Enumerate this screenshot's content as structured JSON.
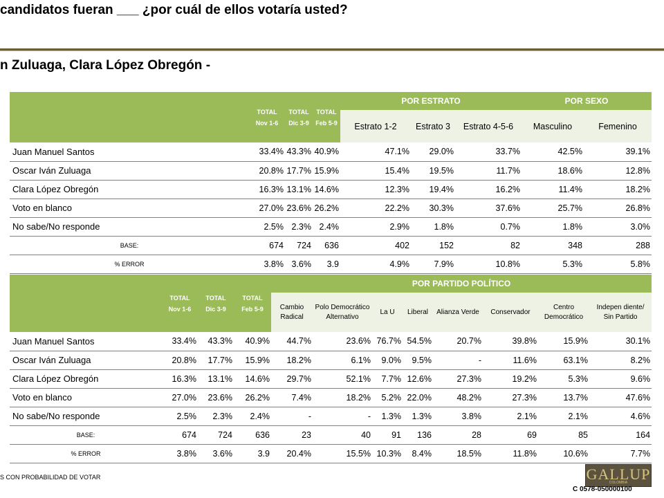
{
  "title": "candidatos fueran ___ ¿por cuál de ellos votaría usted?",
  "subtitle": "n Zuluaga, Clara López Obregón -",
  "totals_headers": [
    {
      "label": "TOTAL",
      "date": "Nov 1-6"
    },
    {
      "label": "TOTAL",
      "date": "Dic 3-9"
    },
    {
      "label": "TOTAL",
      "date": "Feb 5-9"
    }
  ],
  "table1": {
    "group_estrato": "POR ESTRATO",
    "group_sexo": "POR SEXO",
    "columns": [
      "Estrato 1-2",
      "Estrato 3",
      "Estrato 4-5-6",
      "Masculino",
      "Femenino"
    ],
    "rows": [
      {
        "name": "Juan Manuel Santos",
        "values": [
          "33.4%",
          "43.3%",
          "40.9%",
          "47.1%",
          "29.0%",
          "33.7%",
          "42.5%",
          "39.1%"
        ]
      },
      {
        "name": "Oscar Iván Zuluaga",
        "values": [
          "20.8%",
          "17.7%",
          "15.9%",
          "15.4%",
          "19.5%",
          "11.7%",
          "18.6%",
          "12.8%"
        ]
      },
      {
        "name": "Clara López Obregón",
        "values": [
          "16.3%",
          "13.1%",
          "14.6%",
          "12.3%",
          "19.4%",
          "16.2%",
          "11.4%",
          "18.2%"
        ]
      },
      {
        "name": "Voto en blanco",
        "values": [
          "27.0%",
          "23.6%",
          "26.2%",
          "22.2%",
          "30.3%",
          "37.6%",
          "25.7%",
          "26.8%"
        ]
      },
      {
        "name": "No sabe/No responde",
        "values": [
          "2.5%",
          "2.3%",
          "2.4%",
          "2.9%",
          "1.8%",
          "0.7%",
          "1.8%",
          "3.0%"
        ]
      }
    ],
    "base": {
      "label": "BASE:",
      "values": [
        "674",
        "724",
        "636",
        "402",
        "152",
        "82",
        "348",
        "288"
      ]
    },
    "error": {
      "label": "% ERROR",
      "values": [
        "3.8%",
        "3.6%",
        "3.9",
        "4.9%",
        "7.9%",
        "10.8%",
        "5.3%",
        "5.8%"
      ]
    }
  },
  "table2": {
    "group_partido": "POR PARTIDO POLÍTICO",
    "columns": [
      "Cambio Radical",
      "Polo Democrático Alternativo",
      "La U",
      "Liberal",
      "Alianza Verde",
      "Conservador",
      "Centro Democrático",
      "Indepen diente/ Sin Partido"
    ],
    "rows": [
      {
        "name": "Juan Manuel Santos",
        "values": [
          "33.4%",
          "43.3%",
          "40.9%",
          "44.7%",
          "23.6%",
          "76.7%",
          "54.5%",
          "20.7%",
          "39.8%",
          "15.9%",
          "30.1%"
        ]
      },
      {
        "name": "Oscar Iván Zuluaga",
        "values": [
          "20.8%",
          "17.7%",
          "15.9%",
          "18.2%",
          "6.1%",
          "9.0%",
          "9.5%",
          "-",
          "11.6%",
          "63.1%",
          "8.2%"
        ]
      },
      {
        "name": "Clara López Obregón",
        "values": [
          "16.3%",
          "13.1%",
          "14.6%",
          "29.7%",
          "52.1%",
          "7.7%",
          "12.6%",
          "27.3%",
          "19.2%",
          "5.3%",
          "9.6%"
        ]
      },
      {
        "name": "Voto en blanco",
        "values": [
          "27.0%",
          "23.6%",
          "26.2%",
          "7.4%",
          "18.2%",
          "5.2%",
          "22.0%",
          "48.2%",
          "27.3%",
          "13.7%",
          "47.6%"
        ]
      },
      {
        "name": "No sabe/No responde",
        "values": [
          "2.5%",
          "2.3%",
          "2.4%",
          "-",
          "-",
          "1.3%",
          "1.3%",
          "3.8%",
          "2.1%",
          "2.1%",
          "4.6%"
        ]
      }
    ],
    "base": {
      "label": "BASE:",
      "values": [
        "674",
        "724",
        "636",
        "23",
        "40",
        "91",
        "136",
        "28",
        "69",
        "85",
        "164"
      ]
    },
    "error": {
      "label": "% ERROR",
      "values": [
        "3.8%",
        "3.6%",
        "3.9",
        "20.4%",
        "15.5%",
        "10.3%",
        "8.4%",
        "18.5%",
        "11.8%",
        "10.6%",
        "7.7%"
      ]
    }
  },
  "footnote": "S CON PROBABILIDAD DE VOTAR",
  "logo": {
    "name": "GALLUP",
    "sub": "COLOMBIA"
  },
  "code": "C  0578-050000100",
  "colors": {
    "header_green": "#9bbb59",
    "rule_brown": "#6b5e35",
    "logo_bg": "#5b5340"
  }
}
